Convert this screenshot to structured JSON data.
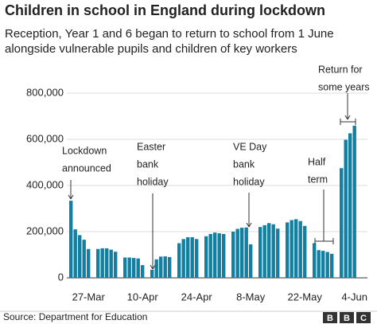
{
  "chart_data": {
    "type": "bar",
    "title": "Children in school in England during lockdown",
    "subtitle": [
      "Reception, Year 1 and 6 began to return to school from 1 June",
      "alongside vulnerable pupils and children of key workers"
    ],
    "categories": [
      null,
      null,
      null,
      null,
      "27-Mar",
      null,
      null,
      null,
      null,
      null,
      null,
      null,
      null,
      null,
      "10-Apr",
      null,
      null,
      null,
      null,
      null,
      null,
      null,
      null,
      null,
      "24-Apr",
      null,
      null,
      null,
      null,
      null,
      null,
      null,
      null,
      null,
      "8-May",
      null,
      null,
      null,
      null,
      null,
      null,
      null,
      null,
      null,
      "22-May",
      null,
      null,
      null,
      null,
      null,
      null,
      null,
      null,
      "4-Jun"
    ],
    "values": [
      334000,
      210000,
      185000,
      165000,
      125000,
      125000,
      128000,
      128000,
      122000,
      113000,
      88000,
      88000,
      86000,
      84000,
      55000,
      35000,
      80000,
      92000,
      93000,
      90000,
      150000,
      168000,
      176000,
      176000,
      168000,
      180000,
      190000,
      196000,
      193000,
      190000,
      200000,
      212000,
      217000,
      218000,
      145000,
      220000,
      228000,
      237000,
      232000,
      213000,
      240000,
      250000,
      254000,
      246000,
      225000,
      150000,
      120000,
      117000,
      112000,
      104000,
      475000,
      598000,
      626000,
      659000
    ],
    "color": "#1380a1",
    "ylim": [
      0,
      800000
    ],
    "yticks": [
      0,
      {
        "value": 200000,
        "label": "200,000"
      },
      {
        "value": 400000,
        "label": "400,000"
      },
      {
        "value": 600000,
        "label": "600,000"
      },
      {
        "value": 800000,
        "label": "800,000"
      }
    ],
    "grid": true,
    "annotations": [
      {
        "lines": [
          "Lockdown",
          "announced"
        ]
      },
      {
        "lines": [
          "Easter",
          "bank",
          "holiday"
        ]
      },
      {
        "lines": [
          "VE Day",
          "bank",
          "holiday"
        ]
      },
      {
        "lines": [
          "Half",
          "term"
        ]
      },
      {
        "lines": [
          "Return for",
          "some years"
        ]
      }
    ],
    "source": "Source: Department for Education",
    "logo": [
      "B",
      "B",
      "C"
    ]
  }
}
